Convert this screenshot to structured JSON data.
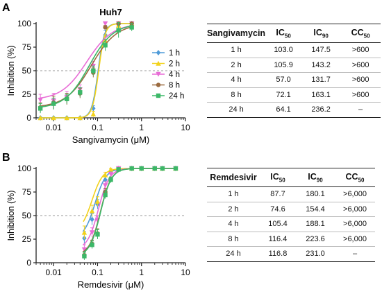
{
  "chart_data": [
    {
      "panel": "A",
      "type": "line",
      "title": "Huh7",
      "xlabel": "Sangivamycin (μM)",
      "ylabel": "Inhibition (%)",
      "xscale": "log",
      "xlim": [
        0.004,
        10
      ],
      "ylim": [
        0,
        100
      ],
      "xticks": [
        "0.01",
        "0.1",
        "1",
        "10"
      ],
      "yticks": [
        "0",
        "25",
        "50",
        "75",
        "100"
      ],
      "reference_line_y": 50,
      "legend_position": "right",
      "series": [
        {
          "name": "1 h",
          "color": "#4f9bd8",
          "marker": "diamond",
          "x": [
            0.005,
            0.01,
            0.02,
            0.04,
            0.08,
            0.15,
            0.3,
            0.6
          ],
          "y": [
            0,
            0,
            0,
            0,
            10,
            88,
            99,
            100
          ],
          "err": [
            0,
            0,
            0,
            0,
            3,
            5,
            2,
            1
          ],
          "ic50": 0.103,
          "hill": 6
        },
        {
          "name": "2 h",
          "color": "#f2d21b",
          "marker": "triangle-up",
          "x": [
            0.005,
            0.01,
            0.02,
            0.04,
            0.08,
            0.15,
            0.3,
            0.6
          ],
          "y": [
            0,
            0,
            0,
            0,
            4,
            82,
            98,
            100
          ],
          "err": [
            0,
            0,
            0,
            0,
            3,
            6,
            2,
            1
          ],
          "ic50": 0.106,
          "hill": 6
        },
        {
          "name": "4 h",
          "color": "#e86cd6",
          "marker": "triangle-down",
          "x": [
            0.005,
            0.01,
            0.02,
            0.04,
            0.08,
            0.15,
            0.3,
            0.6
          ],
          "y": [
            19,
            18,
            22,
            30,
            55,
            100,
            100,
            100
          ],
          "err": [
            6,
            8,
            6,
            5,
            5,
            1,
            1,
            1
          ],
          "ic50": 0.057,
          "hill": 1.5
        },
        {
          "name": "8 h",
          "color": "#9b6b40",
          "marker": "circle",
          "x": [
            0.005,
            0.01,
            0.02,
            0.04,
            0.08,
            0.15,
            0.3,
            0.6
          ],
          "y": [
            11,
            16,
            20,
            26,
            48,
            96,
            100,
            100
          ],
          "err": [
            5,
            7,
            6,
            5,
            5,
            2,
            1,
            1
          ],
          "ic50": 0.072,
          "hill": 1.5
        },
        {
          "name": "24 h",
          "color": "#3cb868",
          "marker": "square",
          "x": [
            0.005,
            0.01,
            0.02,
            0.04,
            0.08,
            0.15,
            0.3,
            0.6
          ],
          "y": [
            10,
            15,
            20,
            27,
            50,
            77,
            93,
            96
          ],
          "err": [
            5,
            6,
            5,
            5,
            5,
            6,
            8,
            4
          ],
          "ic50": 0.064,
          "hill": 1.6
        }
      ]
    },
    {
      "panel": "B",
      "type": "line",
      "title": "",
      "xlabel": "Remdesivir (μM)",
      "ylabel": "Inhibition (%)",
      "xscale": "log",
      "xlim": [
        0.004,
        10
      ],
      "ylim": [
        0,
        100
      ],
      "xticks": [
        "0.01",
        "0.1",
        "1",
        "10"
      ],
      "yticks": [
        "0",
        "25",
        "50",
        "75",
        "100"
      ],
      "reference_line_y": 50,
      "series": [
        {
          "name": "1 h",
          "color": "#4f9bd8",
          "marker": "diamond",
          "x": [
            0.05,
            0.075,
            0.1,
            0.15,
            0.2,
            0.3,
            0.6,
            1,
            2,
            3,
            6
          ],
          "y": [
            26,
            46,
            62,
            88,
            96,
            100,
            100,
            100,
            100,
            100,
            100
          ],
          "err": [
            7,
            6,
            5,
            4,
            2,
            1,
            1,
            1,
            1,
            1,
            1
          ],
          "ic50": 0.0877,
          "hill": 3.5
        },
        {
          "name": "2 h",
          "color": "#f2d21b",
          "marker": "triangle-up",
          "x": [
            0.05,
            0.075,
            0.1,
            0.15,
            0.2,
            0.3,
            0.6,
            1,
            2,
            3,
            6
          ],
          "y": [
            32,
            55,
            65,
            93,
            99,
            100,
            100,
            100,
            100,
            100,
            100
          ],
          "err": [
            7,
            6,
            5,
            3,
            1,
            1,
            1,
            1,
            1,
            1,
            1
          ],
          "ic50": 0.0746,
          "hill": 3.5
        },
        {
          "name": "4 h",
          "color": "#e86cd6",
          "marker": "triangle-down",
          "x": [
            0.05,
            0.075,
            0.1,
            0.15,
            0.2,
            0.3,
            0.6,
            1,
            2,
            3,
            6
          ],
          "y": [
            14,
            32,
            45,
            82,
            94,
            100,
            100,
            100,
            100,
            100,
            100
          ],
          "err": [
            5,
            5,
            5,
            4,
            2,
            1,
            1,
            1,
            1,
            1,
            1
          ],
          "ic50": 0.105,
          "hill": 3.5
        },
        {
          "name": "8 h",
          "color": "#9b6b40",
          "marker": "circle",
          "x": [
            0.05,
            0.075,
            0.1,
            0.15,
            0.2,
            0.3,
            0.6,
            1,
            2,
            3,
            6
          ],
          "y": [
            8,
            20,
            31,
            75,
            88,
            99,
            100,
            100,
            100,
            100,
            100
          ],
          "err": [
            4,
            4,
            5,
            4,
            3,
            1,
            1,
            1,
            1,
            1,
            1
          ],
          "ic50": 0.116,
          "hill": 3.5
        },
        {
          "name": "24 h",
          "color": "#3cb868",
          "marker": "square",
          "x": [
            0.05,
            0.075,
            0.1,
            0.15,
            0.2,
            0.3,
            0.6,
            1,
            2,
            3,
            6
          ],
          "y": [
            7,
            19,
            30,
            72,
            88,
            99,
            100,
            100,
            100,
            100,
            100
          ],
          "err": [
            4,
            4,
            5,
            4,
            3,
            1,
            1,
            1,
            1,
            1,
            1
          ],
          "ic50": 0.117,
          "hill": 3.5
        }
      ]
    }
  ],
  "panel_labels": {
    "a": "A",
    "b": "B"
  },
  "table_a": {
    "headers": {
      "compound": "Sangivamycin",
      "ic50": "IC",
      "ic50_sub": "50",
      "ic90": "IC",
      "ic90_sub": "90",
      "cc50": "CC",
      "cc50_sub": "50"
    },
    "rows": [
      {
        "time": "1 h",
        "ic50": "103.0",
        "ic90": "147.5",
        "cc50": ">600"
      },
      {
        "time": "2 h",
        "ic50": "105.9",
        "ic90": "143.2",
        "cc50": ">600"
      },
      {
        "time": "4 h",
        "ic50": "57.0",
        "ic90": "131.7",
        "cc50": ">600"
      },
      {
        "time": "8 h",
        "ic50": "72.1",
        "ic90": "163.1",
        "cc50": ">600"
      },
      {
        "time": "24 h",
        "ic50": "64.1",
        "ic90": "236.2",
        "cc50": "–"
      }
    ]
  },
  "table_b": {
    "headers": {
      "compound": "Remdesivir",
      "ic50": "IC",
      "ic50_sub": "50",
      "ic90": "IC",
      "ic90_sub": "90",
      "cc50": "CC",
      "cc50_sub": "50"
    },
    "rows": [
      {
        "time": "1 h",
        "ic50": "87.7",
        "ic90": "180.1",
        "cc50": ">6,000"
      },
      {
        "time": "2 h",
        "ic50": "74.6",
        "ic90": "154.4",
        "cc50": ">6,000"
      },
      {
        "time": "4 h",
        "ic50": "105.4",
        "ic90": "188.1",
        "cc50": ">6,000"
      },
      {
        "time": "8 h",
        "ic50": "116.4",
        "ic90": "223.6",
        "cc50": ">6,000"
      },
      {
        "time": "24 h",
        "ic50": "116.8",
        "ic90": "231.0",
        "cc50": "–"
      }
    ]
  }
}
